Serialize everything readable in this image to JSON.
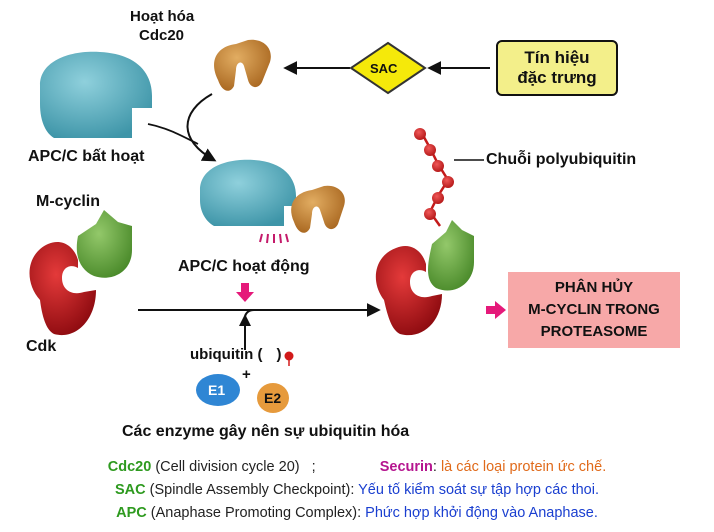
{
  "labels": {
    "cdc20_active_line1": "Hoạt hóa",
    "cdc20_active_line2": "Cdc20",
    "sac": "SAC",
    "signal_line1": "Tín hiệu",
    "signal_line2": "đặc trưng",
    "apc_inactive": "APC/C bất hoạt",
    "m_cyclin": "M-cyclin",
    "polyubiquitin": "Chuỗi polyubiquitin",
    "apc_active": "APC/C hoạt động",
    "cdk": "Cdk",
    "degrade_line1": "PHÂN HỦY",
    "degrade_line2": "M-CYCLIN TRONG",
    "degrade_line3": "PROTEASOME",
    "ubiquitin": "ubiquitin (",
    "ubiquitin_close": ")",
    "e1": "E1",
    "e2": "E2",
    "plus": "+",
    "enzymes": "Các enzyme gây nên sự ubiquitin hóa"
  },
  "legend": {
    "line1_term": "Cdc20",
    "line1_def": " (Cell division cycle 20)   ;",
    "line1_term2": "Securin",
    "line1_colon": ": ",
    "line1_def2": "là các loại protein ức chế.",
    "line2_term": "SAC",
    "line2_def": " (Spindle Assembly Checkpoint): ",
    "line2_def2": "Yếu tố kiểm soát sự tập hợp các thoi.",
    "line3_term": "APC",
    "line3_def": " (Anaphase Promoting Complex): ",
    "line3_def2": "Phức hợp khởi động vào Anaphase."
  },
  "colors": {
    "apc_teal": "#5db3c4",
    "cdc20_orange": "#c98a3a",
    "cdk_red": "#c0141b",
    "cyclin_green": "#6aa944",
    "sac_yellow": "#f5e90a",
    "signal_box": "#f3ef8a",
    "degrade_box": "#f7a8a8",
    "arrow_magenta": "#e5197a",
    "e1_blue": "#2f86d4",
    "e2_orange": "#e69a3c"
  }
}
